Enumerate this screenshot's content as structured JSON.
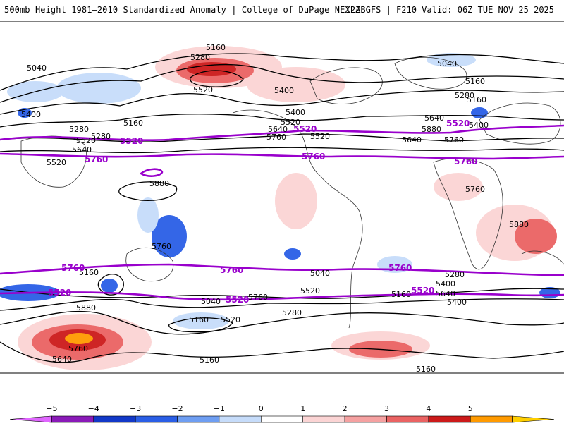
{
  "header": {
    "title_left": "500mb Height 1981–2010 Standardized Anomaly | College of DuPage NEXLAB",
    "title_right": "12Z GFS | F210 Valid: 06Z TUE NOV 25 2025"
  },
  "contour_labels": [
    "5160",
    "5040",
    "5280",
    "5520",
    "5400",
    "5040",
    "5160",
    "5280",
    "5400",
    "5520",
    "5640",
    "5760",
    "5880",
    "5160",
    "5400",
    "5280",
    "5520",
    "5640",
    "5760",
    "5880",
    "5760",
    "5640",
    "5520",
    "5160",
    "5280",
    "5400",
    "5520",
    "5640",
    "5760",
    "5880",
    "5040",
    "5160",
    "5280",
    "5400",
    "5520",
    "5640",
    "5760",
    "5160",
    "5040",
    "5400",
    "5280",
    "5160",
    "5880",
    "5760",
    "5640",
    "5520",
    "5160",
    "5160"
  ],
  "purple_labels": [
    "5520",
    "5760",
    "5520",
    "5760",
    "5520",
    "5760",
    "5760",
    "5760",
    "5520",
    "5520",
    "5520",
    "5760"
  ],
  "colorbar": {
    "ticks": [
      "−5",
      "−4",
      "−3",
      "−2",
      "−1",
      "0",
      "1",
      "2",
      "3",
      "4",
      "5"
    ],
    "colors": [
      "#e066ff",
      "#8a1ab8",
      "#1238c8",
      "#2a5ee6",
      "#6e9ef2",
      "#c6dcfa",
      "#ffffff",
      "#fbd4d4",
      "#f5a1a1",
      "#ea6363",
      "#cc1a1a",
      "#ff9a00",
      "#ffcf00"
    ]
  }
}
